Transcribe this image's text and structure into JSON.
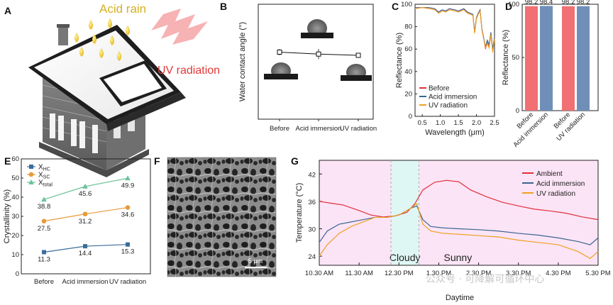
{
  "panels": {
    "A": "A",
    "B": "B",
    "C": "C",
    "D": "D",
    "E": "E",
    "F": "F",
    "G": "G"
  },
  "panelA": {
    "acid_rain": "Acid rain",
    "uv": "UV radiation"
  },
  "panelF": {
    "scale": "5 μm"
  },
  "colors": {
    "red": "#e0303a",
    "blue": "#3c6590",
    "orange": "#f0a020",
    "green": "#6cc29a",
    "orange_e": "#e89a3a",
    "blue_e": "#3a6d9a",
    "bar_red": "#f07074",
    "bar_blue": "#6f8fb8",
    "pink_bg": "#fbe4f6",
    "cyan_bg": "#dff7f4"
  },
  "watermark": "公众号 · 可降解可循环中心",
  "chart_data": [
    {
      "id": "B",
      "type": "scatter",
      "categories": [
        "Before",
        "Acid immersion",
        "UV radiation"
      ],
      "values": [
        105,
        102,
        100
      ],
      "errors": [
        5,
        8,
        2
      ],
      "ylabel": "Water contact angle (°)",
      "ylim": [
        0,
        180
      ]
    },
    {
      "id": "C",
      "type": "line",
      "xlabel": "Wavelength (μm)",
      "ylabel": "Reflectance (%)",
      "xlim": [
        0.3,
        2.5
      ],
      "ylim": [
        0,
        100
      ],
      "xticks": [
        "0.5",
        "1.0",
        "1.5",
        "2.0",
        "2.5"
      ],
      "yticks": [
        "0",
        "20",
        "40",
        "60",
        "80",
        "100"
      ],
      "series": [
        {
          "name": "Before",
          "color": "#e0303a",
          "x": [
            0.3,
            0.5,
            0.7,
            0.85,
            0.95,
            1.05,
            1.15,
            1.25,
            1.4,
            1.5,
            1.65,
            1.75,
            1.9,
            1.95,
            2.0,
            2.05,
            2.1,
            2.15,
            2.2,
            2.25,
            2.3,
            2.35,
            2.4,
            2.45,
            2.5
          ],
          "y": [
            97,
            97,
            97,
            96,
            93,
            95,
            94,
            96,
            95,
            94,
            96,
            93,
            91,
            75,
            88,
            92,
            95,
            78,
            70,
            60,
            66,
            62,
            74,
            58,
            70
          ]
        },
        {
          "name": "Acid immersion",
          "color": "#3c6590",
          "x": [
            0.3,
            0.5,
            0.7,
            0.85,
            0.95,
            1.05,
            1.15,
            1.25,
            1.4,
            1.5,
            1.65,
            1.75,
            1.9,
            1.95,
            2.0,
            2.05,
            2.1,
            2.15,
            2.2,
            2.25,
            2.3,
            2.35,
            2.4,
            2.45,
            2.5
          ],
          "y": [
            97,
            97,
            97,
            96,
            93,
            95,
            94,
            96,
            95,
            94,
            96,
            93,
            91,
            75,
            88,
            92,
            95,
            78,
            70,
            62,
            68,
            64,
            75,
            60,
            71
          ]
        },
        {
          "name": "UV radiation",
          "color": "#f0a020",
          "x": [
            0.3,
            0.5,
            0.7,
            0.85,
            0.95,
            1.05,
            1.15,
            1.25,
            1.4,
            1.5,
            1.65,
            1.75,
            1.9,
            1.95,
            2.0,
            2.05,
            2.1,
            2.15,
            2.2,
            2.25,
            2.3,
            2.35,
            2.4,
            2.45,
            2.5
          ],
          "y": [
            96,
            97,
            96,
            95,
            92,
            94,
            93,
            95,
            94,
            93,
            95,
            92,
            90,
            74,
            87,
            91,
            94,
            77,
            69,
            61,
            65,
            61,
            73,
            57,
            69
          ]
        }
      ]
    },
    {
      "id": "D",
      "type": "bar",
      "ylabel": "Reflectance (%)",
      "ylim": [
        0,
        100
      ],
      "yticks": [
        "0",
        "50",
        "100"
      ],
      "categories": [
        "Before",
        "Acid immersion",
        "Before",
        "UV radiation"
      ],
      "values": [
        98.2,
        98.4,
        98.2,
        98.2
      ],
      "labels": [
        "98.2",
        "98.4",
        "98.2",
        "98.2"
      ]
    },
    {
      "id": "E",
      "type": "line",
      "categories": [
        "Before",
        "Acid immersion",
        "UV radiation"
      ],
      "ylabel": "Crystallinity (%)",
      "ylim": [
        0,
        60
      ],
      "yticks": [
        "0",
        "10",
        "20",
        "30",
        "40",
        "50",
        "60"
      ],
      "series": [
        {
          "name": "X",
          "sub": "HC",
          "color": "#3a6d9a",
          "marker": "square",
          "values": [
            11.3,
            14.4,
            15.3
          ],
          "labels": [
            "11.3",
            "14.4",
            "15.3"
          ]
        },
        {
          "name": "X",
          "sub": "SC",
          "color": "#e89a3a",
          "marker": "circle",
          "values": [
            27.5,
            31.2,
            34.6
          ],
          "labels": [
            "27.5",
            "31.2",
            "34.6"
          ]
        },
        {
          "name": "X",
          "sub": "total",
          "color": "#6cc29a",
          "marker": "triangle",
          "values": [
            38.8,
            45.6,
            49.9
          ],
          "labels": [
            "38.8",
            "45.6",
            "49.9"
          ]
        }
      ]
    },
    {
      "id": "G",
      "type": "line",
      "xlabel": "Daytime",
      "ylabel": "Temperature (°C)",
      "xlim": [
        0,
        7
      ],
      "ylim": [
        22,
        45
      ],
      "xticks": [
        "10.30 AM",
        "11.30 AM",
        "12.30 PM",
        "1.30 PM",
        "2.30 PM",
        "3.30 PM",
        "4.30 PM",
        "5.30 PM"
      ],
      "yticks": [
        "24",
        "30",
        "36",
        "42"
      ],
      "regions": [
        {
          "label": "Cloudy",
          "from": 1.8,
          "to": 2.5
        },
        {
          "label": "Sunny",
          "from": 2.5,
          "to": 7
        }
      ],
      "series": [
        {
          "name": "Ambient",
          "color": "#e0303a",
          "x": [
            0,
            0.3,
            0.6,
            1.0,
            1.3,
            1.6,
            1.9,
            2.2,
            2.4,
            2.6,
            2.9,
            3.2,
            3.5,
            3.8,
            4.2,
            4.6,
            5.0,
            5.4,
            5.8,
            6.2,
            6.6,
            7.0
          ],
          "y": [
            36,
            35.6,
            35.2,
            34,
            33,
            32.6,
            32.8,
            33.6,
            35.5,
            38.5,
            40.2,
            40.6,
            40.3,
            38.5,
            37,
            35.8,
            35,
            34.3,
            33.9,
            33.4,
            32.6,
            32
          ]
        },
        {
          "name": "Acid immersion",
          "color": "#3c6590",
          "x": [
            0,
            0.2,
            0.5,
            0.8,
            1.1,
            1.4,
            1.7,
            2.0,
            2.3,
            2.45,
            2.6,
            2.8,
            3.1,
            3.5,
            4.0,
            4.5,
            5.0,
            5.5,
            6.0,
            6.5,
            6.8,
            7.0
          ],
          "y": [
            27,
            29.5,
            31,
            31.5,
            32,
            32.5,
            32.5,
            33,
            34.5,
            35,
            32,
            30.5,
            30.2,
            30,
            29.8,
            29.5,
            29,
            28.6,
            28,
            27.2,
            26.5,
            28
          ]
        },
        {
          "name": "UV radiation",
          "color": "#f0a020",
          "x": [
            0,
            0.2,
            0.5,
            0.8,
            1.1,
            1.4,
            1.7,
            2.0,
            2.3,
            2.45,
            2.6,
            2.8,
            3.1,
            3.5,
            4.0,
            4.5,
            5.0,
            5.5,
            6.0,
            6.5,
            6.8,
            7.0
          ],
          "y": [
            24,
            26.5,
            29,
            30.5,
            31.5,
            32.5,
            32.5,
            33,
            34.5,
            35.5,
            31,
            29.5,
            29,
            28.8,
            28.5,
            28.2,
            27.5,
            27,
            26.5,
            25,
            23.5,
            25
          ]
        }
      ]
    }
  ]
}
